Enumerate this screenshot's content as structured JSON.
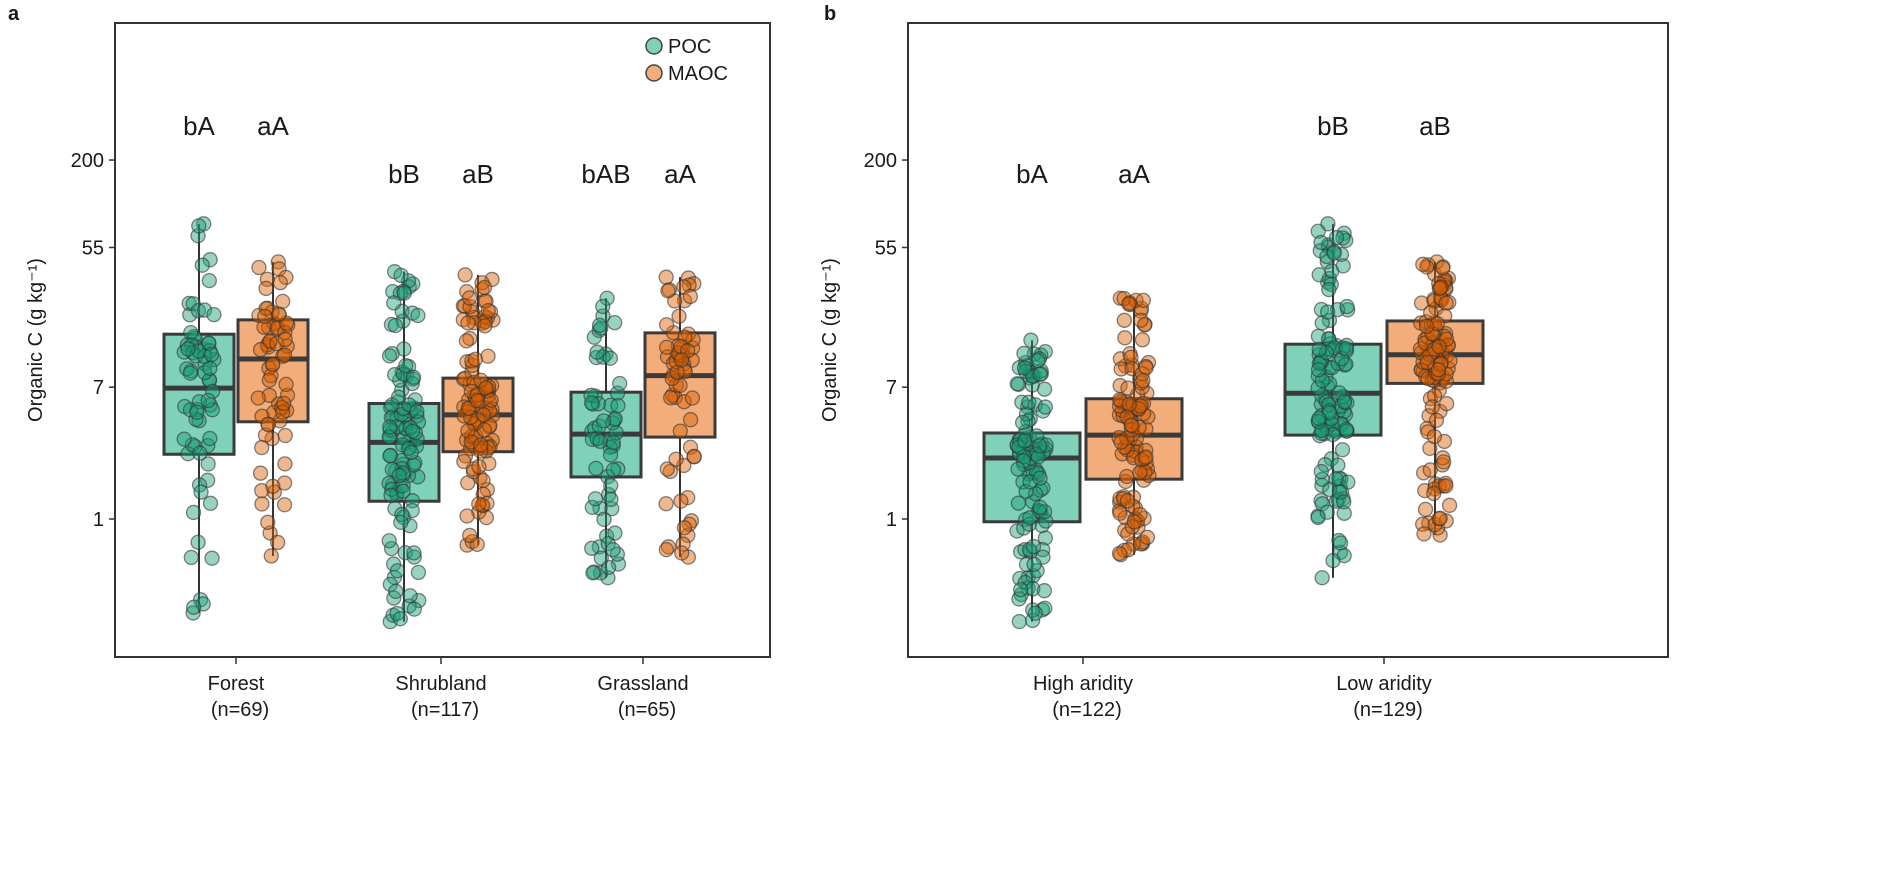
{
  "chart_data": [
    {
      "type": "box",
      "panel_label": "a",
      "ylabel": "Organic C (g kg⁻¹)",
      "yscale": "log",
      "yticks": [
        1,
        7,
        55,
        200
      ],
      "ylim": [
        0.13,
        1500
      ],
      "grid": false,
      "legend": {
        "placement": "top-right",
        "entries": [
          "POC",
          "MAOC"
        ]
      },
      "series_colors": {
        "POC": {
          "box": "#7fd1b9",
          "point": "#1b9e77"
        },
        "MAOC": {
          "box": "#f2ad7b",
          "point": "#d95f02"
        }
      },
      "categories": [
        {
          "label": "Forest",
          "n_label": "(n=69)",
          "n": 69,
          "POC": {
            "letters": "bA",
            "whisker_low": 0.25,
            "q1": 2.6,
            "median": 6.9,
            "q3": 15.3,
            "whisker_high": 78
          },
          "MAOC": {
            "letters": "aA",
            "whisker_low": 0.58,
            "q1": 4.2,
            "median": 10.6,
            "q3": 18.9,
            "whisker_high": 44.5
          }
        },
        {
          "label": "Shrubland",
          "n_label": "(n=117)",
          "n": 117,
          "POC": {
            "letters": "bB",
            "whisker_low": 0.22,
            "q1": 1.3,
            "median": 3.1,
            "q3": 5.5,
            "whisker_high": 38.5
          },
          "MAOC": {
            "letters": "aB",
            "whisker_low": 0.68,
            "q1": 2.7,
            "median": 4.65,
            "q3": 8.0,
            "whisker_high": 36.7
          }
        },
        {
          "label": "Grassland",
          "n_label": "(n=65)",
          "n": 65,
          "POC": {
            "letters": "bAB",
            "whisker_low": 0.42,
            "q1": 1.86,
            "median": 3.5,
            "q3": 6.5,
            "whisker_high": 26
          },
          "MAOC": {
            "letters": "aA",
            "whisker_low": 0.57,
            "q1": 3.35,
            "median": 8.3,
            "q3": 15.6,
            "whisker_high": 35.5
          }
        }
      ]
    },
    {
      "type": "box",
      "panel_label": "b",
      "ylabel": "Organic C (g kg⁻¹)",
      "yscale": "log",
      "yticks": [
        1,
        7,
        55,
        200
      ],
      "ylim": [
        0.13,
        1500
      ],
      "grid": false,
      "categories": [
        {
          "label": "High aridity",
          "n_label": "(n=122)",
          "n": 122,
          "POC": {
            "letters": "bA",
            "whisker_low": 0.22,
            "q1": 0.96,
            "median": 2.46,
            "q3": 3.56,
            "whisker_high": 14
          },
          "MAOC": {
            "letters": "aA",
            "whisker_low": 0.59,
            "q1": 1.8,
            "median": 3.45,
            "q3": 5.9,
            "whisker_high": 26
          }
        },
        {
          "label": "Low aridity",
          "n_label": "(n=129)",
          "n": 129,
          "POC": {
            "letters": "bB",
            "whisker_low": 0.42,
            "q1": 3.45,
            "median": 6.4,
            "q3": 13.2,
            "whisker_high": 78
          },
          "MAOC": {
            "letters": "aB",
            "whisker_low": 0.79,
            "q1": 7.4,
            "median": 11.3,
            "q3": 18.6,
            "whisker_high": 44.5
          }
        }
      ]
    }
  ]
}
